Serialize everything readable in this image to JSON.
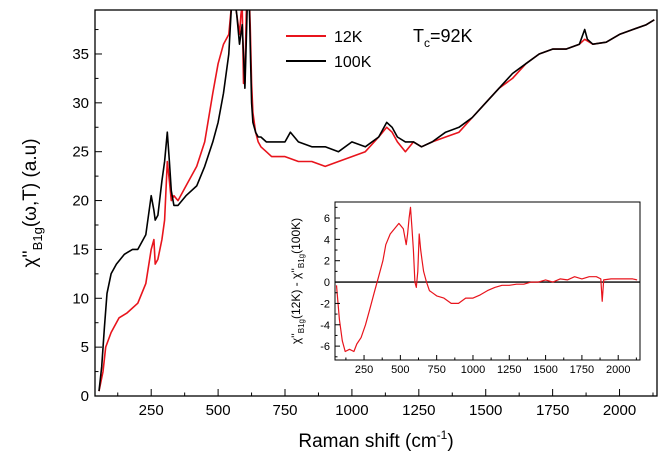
{
  "chart_data": [
    {
      "type": "line",
      "xlabel": "Raman shift (cm",
      "xlabel_sup": "-1",
      "xlabel_close": ")",
      "ylabel_pre": "χ''",
      "ylabel_sub": "B1g",
      "ylabel_post": "(ω,T) (a.u)",
      "xlim": [
        40,
        2140
      ],
      "ylim": [
        0,
        39.5
      ],
      "x_ticks": [
        250,
        500,
        750,
        1000,
        1250,
        1500,
        1750,
        2000
      ],
      "x_tick_labels": [
        "250",
        "500",
        "750",
        "1000",
        "1250",
        "1500",
        "1750",
        "2000"
      ],
      "y_ticks": [
        0,
        5,
        10,
        15,
        20,
        25,
        30,
        35
      ],
      "y_tick_labels": [
        "0",
        "5",
        "10",
        "15",
        "20",
        "25",
        "30",
        "35"
      ],
      "grid": false,
      "legend": {
        "placement": "top-center",
        "entries": [
          {
            "name": "12K",
            "color": "#e8141c"
          },
          {
            "name": "100K",
            "color": "#000000"
          }
        ]
      },
      "annotation": {
        "text_main": "T",
        "text_sub": "c",
        "text_tail": "=92K"
      },
      "series": [
        {
          "name": "12K",
          "color": "#e8141c",
          "x": [
            55,
            70,
            80,
            100,
            130,
            160,
            200,
            230,
            250,
            260,
            265,
            275,
            290,
            300,
            310,
            318,
            325,
            335,
            350,
            380,
            420,
            450,
            480,
            500,
            520,
            540,
            550,
            560,
            570,
            580,
            585,
            590,
            595,
            600,
            605,
            610,
            615,
            620,
            625,
            630,
            640,
            650,
            660,
            680,
            700,
            750,
            800,
            850,
            900,
            950,
            1000,
            1050,
            1100,
            1130,
            1150,
            1170,
            1200,
            1230,
            1260,
            1300,
            1350,
            1400,
            1450,
            1500,
            1550,
            1600,
            1650,
            1700,
            1750,
            1800,
            1850,
            1870,
            1900,
            1950,
            2000,
            2050,
            2100,
            2130
          ],
          "y": [
            0.5,
            2.5,
            5,
            6.5,
            8,
            8.5,
            9.5,
            11.5,
            15,
            16,
            13.5,
            14,
            16,
            18,
            24,
            22,
            20,
            20.5,
            20,
            21.5,
            23.5,
            26,
            31,
            34,
            36,
            37,
            40,
            41,
            39,
            37,
            39,
            40,
            32,
            32,
            39,
            42,
            42,
            38,
            32,
            29,
            27,
            26,
            25.5,
            25,
            24.5,
            24.5,
            24,
            24,
            23.5,
            24,
            24.5,
            25,
            26.5,
            27.5,
            27,
            26,
            25,
            26,
            25.5,
            26,
            26.5,
            27,
            28.5,
            30,
            31.5,
            32.5,
            34,
            35,
            35.5,
            35.5,
            36,
            36.5,
            36,
            36.2,
            37,
            37.5,
            38,
            38.5
          ]
        },
        {
          "name": "100K",
          "color": "#000000",
          "x": [
            55,
            65,
            75,
            85,
            100,
            120,
            150,
            180,
            200,
            230,
            250,
            260,
            265,
            275,
            290,
            300,
            310,
            318,
            325,
            335,
            350,
            380,
            420,
            450,
            480,
            500,
            520,
            540,
            550,
            560,
            570,
            580,
            585,
            590,
            595,
            600,
            605,
            610,
            615,
            620,
            625,
            630,
            640,
            650,
            660,
            680,
            700,
            750,
            770,
            800,
            850,
            900,
            950,
            1000,
            1050,
            1100,
            1130,
            1150,
            1170,
            1200,
            1230,
            1260,
            1300,
            1350,
            1400,
            1450,
            1500,
            1550,
            1600,
            1650,
            1700,
            1750,
            1800,
            1850,
            1870,
            1880,
            1900,
            1950,
            2000,
            2050,
            2100,
            2130
          ],
          "y": [
            0.5,
            3,
            7,
            10.5,
            12.5,
            13.5,
            14.5,
            15,
            15,
            16.5,
            20.5,
            19,
            18,
            18.5,
            22,
            24,
            27,
            24,
            21,
            19.5,
            19.5,
            20.5,
            21.5,
            23.5,
            26,
            28,
            31,
            35,
            40,
            41,
            39,
            36,
            37,
            38,
            35,
            31.5,
            36,
            41,
            42,
            36,
            30,
            28,
            27,
            26.5,
            26.5,
            26,
            26,
            26,
            27,
            26,
            25.5,
            25.5,
            25,
            26,
            25.5,
            26.5,
            28,
            27.5,
            26.5,
            26,
            26,
            25.5,
            26,
            27,
            27.5,
            28.5,
            30,
            31.5,
            33,
            34,
            35,
            35.5,
            35.5,
            36,
            37.5,
            36.5,
            36,
            36.2,
            37,
            37.5,
            38,
            38.5
          ]
        }
      ]
    },
    {
      "type": "line",
      "is_inset": true,
      "xlabel": "",
      "ylabel_a": "χ''",
      "ylabel_a_sub": "B1g",
      "ylabel_mid": "(12K) - χ''",
      "ylabel_b_sub": "B1g",
      "ylabel_tail": "(100K)",
      "xlim": [
        50,
        2150
      ],
      "ylim": [
        -7.3,
        7.5
      ],
      "x_ticks": [
        250,
        500,
        750,
        1000,
        1250,
        1500,
        1750,
        2000
      ],
      "x_tick_labels": [
        "250",
        "500",
        "750",
        "1000",
        "1250",
        "1500",
        "1750",
        "2000"
      ],
      "y_ticks": [
        -6,
        -4,
        -2,
        0,
        2,
        4,
        6
      ],
      "y_tick_labels": [
        "-6",
        "-4",
        "-2",
        "0",
        "2",
        "4",
        "6"
      ],
      "zero_line": true,
      "grid": false,
      "series": [
        {
          "name": "",
          "color": "#e8141c",
          "x": [
            60,
            80,
            100,
            120,
            150,
            180,
            200,
            230,
            260,
            290,
            320,
            350,
            380,
            400,
            430,
            460,
            490,
            520,
            540,
            550,
            560,
            570,
            580,
            590,
            600,
            610,
            620,
            630,
            640,
            650,
            660,
            680,
            700,
            720,
            750,
            800,
            850,
            900,
            950,
            1000,
            1050,
            1100,
            1150,
            1200,
            1250,
            1300,
            1350,
            1400,
            1450,
            1500,
            1550,
            1600,
            1650,
            1700,
            1750,
            1800,
            1850,
            1880,
            1890,
            1900,
            1950,
            2000,
            2050,
            2100,
            2130
          ],
          "y": [
            -0.3,
            -3.5,
            -5.5,
            -6.5,
            -6.3,
            -6.5,
            -5.8,
            -5.2,
            -4,
            -2.5,
            -1,
            0.5,
            2,
            3.5,
            4.5,
            5,
            5.5,
            5,
            3.5,
            4.5,
            6,
            7,
            5,
            3,
            0,
            -0.5,
            1,
            4.5,
            3,
            2,
            1,
            0,
            -0.8,
            -1,
            -1.3,
            -1.5,
            -2,
            -2,
            -1.5,
            -1.5,
            -1.2,
            -0.8,
            -0.5,
            -0.3,
            -0.3,
            -0.2,
            -0.2,
            0,
            0,
            0.2,
            0,
            0.3,
            0.2,
            0.5,
            0.3,
            0.5,
            0.5,
            0.3,
            -1.8,
            0.2,
            0.3,
            0.3,
            0.3,
            0.3,
            0.2
          ]
        }
      ]
    }
  ]
}
